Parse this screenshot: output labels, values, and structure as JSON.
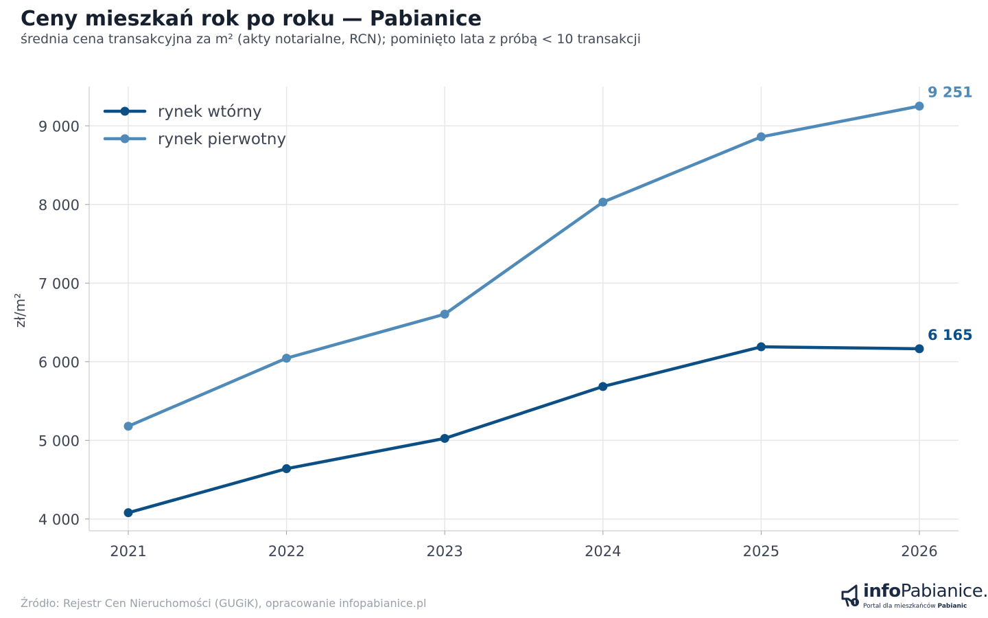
{
  "header": {
    "title": "Ceny mieszkań rok po roku — Pabianice",
    "subtitle": "średnia cena transakcyjna za m² (akty notarialne, RCN); pominięto lata z próbą < 10 transakcji"
  },
  "footer": {
    "source": "Źródło: Rejestr Cen Nieruchomości (GUGiK), opracowanie infopabianice.pl"
  },
  "logo": {
    "brand_prefix": "info",
    "brand_name": "Pabianice.pl",
    "tagline_prefix": "Portal dla mieszkańców",
    "tagline_city": "Pabianic"
  },
  "chart_data": {
    "type": "line",
    "title": "Ceny mieszkań rok po roku — Pabianice",
    "xlabel": "",
    "ylabel": "zł/m²",
    "x": [
      2021,
      2022,
      2023,
      2024,
      2025,
      2026
    ],
    "xticks": [
      "2021",
      "2022",
      "2023",
      "2024",
      "2025",
      "2026"
    ],
    "ylim": [
      3850,
      9500
    ],
    "yticks": [
      4000,
      5000,
      6000,
      7000,
      8000,
      9000
    ],
    "ytick_labels": [
      "4 000",
      "5 000",
      "6 000",
      "7 000",
      "8 000",
      "9 000"
    ],
    "grid": true,
    "legend_position": "top-left",
    "series": [
      {
        "name": "rynek wtórny",
        "color": "#0b4f85",
        "values": [
          4080,
          4640,
          5025,
          5685,
          6190,
          6165
        ],
        "end_label": "6 165"
      },
      {
        "name": "rynek pierwotny",
        "color": "#4f8ab9",
        "values": [
          5180,
          6045,
          6605,
          8030,
          8860,
          9251
        ],
        "end_label": "9 251"
      }
    ]
  }
}
